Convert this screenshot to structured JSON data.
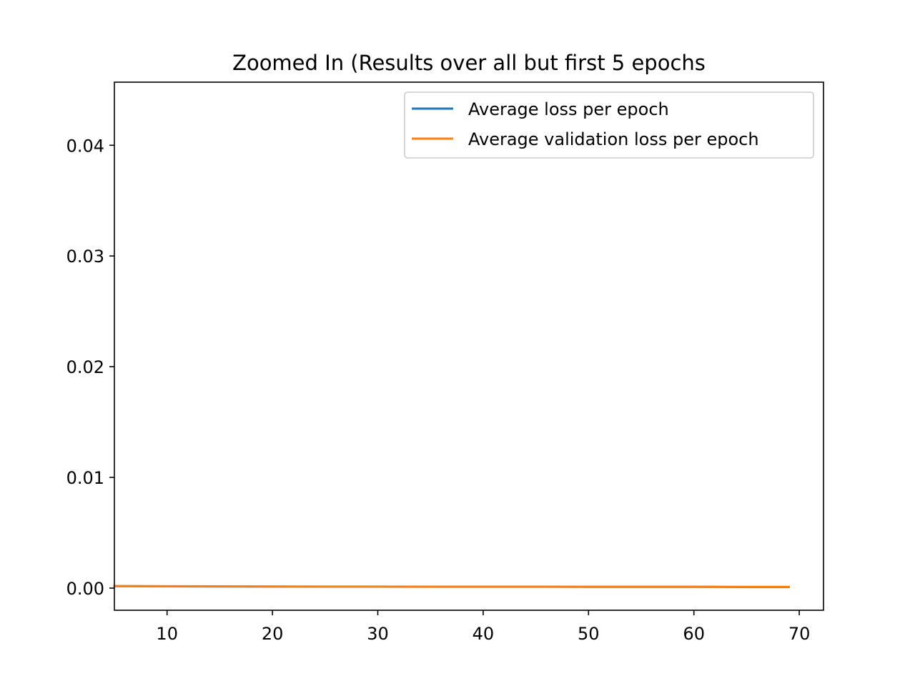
{
  "chart_data": {
    "type": "line",
    "title": "Zoomed In (Results over all but first 5 epochs",
    "xlabel": "",
    "ylabel": "",
    "xlim": [
      5,
      72.3
    ],
    "ylim": [
      -0.002,
      0.0457
    ],
    "x_ticks": [
      10,
      20,
      30,
      40,
      50,
      60,
      70
    ],
    "x_tick_labels": [
      "10",
      "20",
      "30",
      "40",
      "50",
      "60",
      "70"
    ],
    "y_ticks": [
      0.0,
      0.01,
      0.02,
      0.03,
      0.04
    ],
    "y_tick_labels": [
      "0.00",
      "0.01",
      "0.02",
      "0.03",
      "0.04"
    ],
    "grid": false,
    "legend_position": "top-right",
    "series": [
      {
        "name": "Average loss per epoch",
        "color": "#1f77b4",
        "x": [
          5,
          10,
          15,
          20,
          25,
          30,
          35,
          40,
          45,
          50,
          55,
          60,
          65,
          69
        ],
        "y": [
          0.00018,
          0.00016,
          0.00015,
          0.00014,
          0.00013,
          0.00013,
          0.00012,
          0.00012,
          0.00012,
          0.00011,
          0.00011,
          0.00011,
          0.0001,
          0.0001
        ]
      },
      {
        "name": "Average validation loss per epoch",
        "color": "#ff7f0e",
        "x": [
          5,
          10,
          15,
          20,
          25,
          30,
          35,
          40,
          45,
          50,
          55,
          60,
          65,
          69
        ],
        "y": [
          0.00019,
          0.00017,
          0.00016,
          0.00015,
          0.00014,
          0.00014,
          0.00013,
          0.00013,
          0.00013,
          0.00012,
          0.00012,
          0.00012,
          0.00011,
          0.00011
        ]
      }
    ]
  }
}
